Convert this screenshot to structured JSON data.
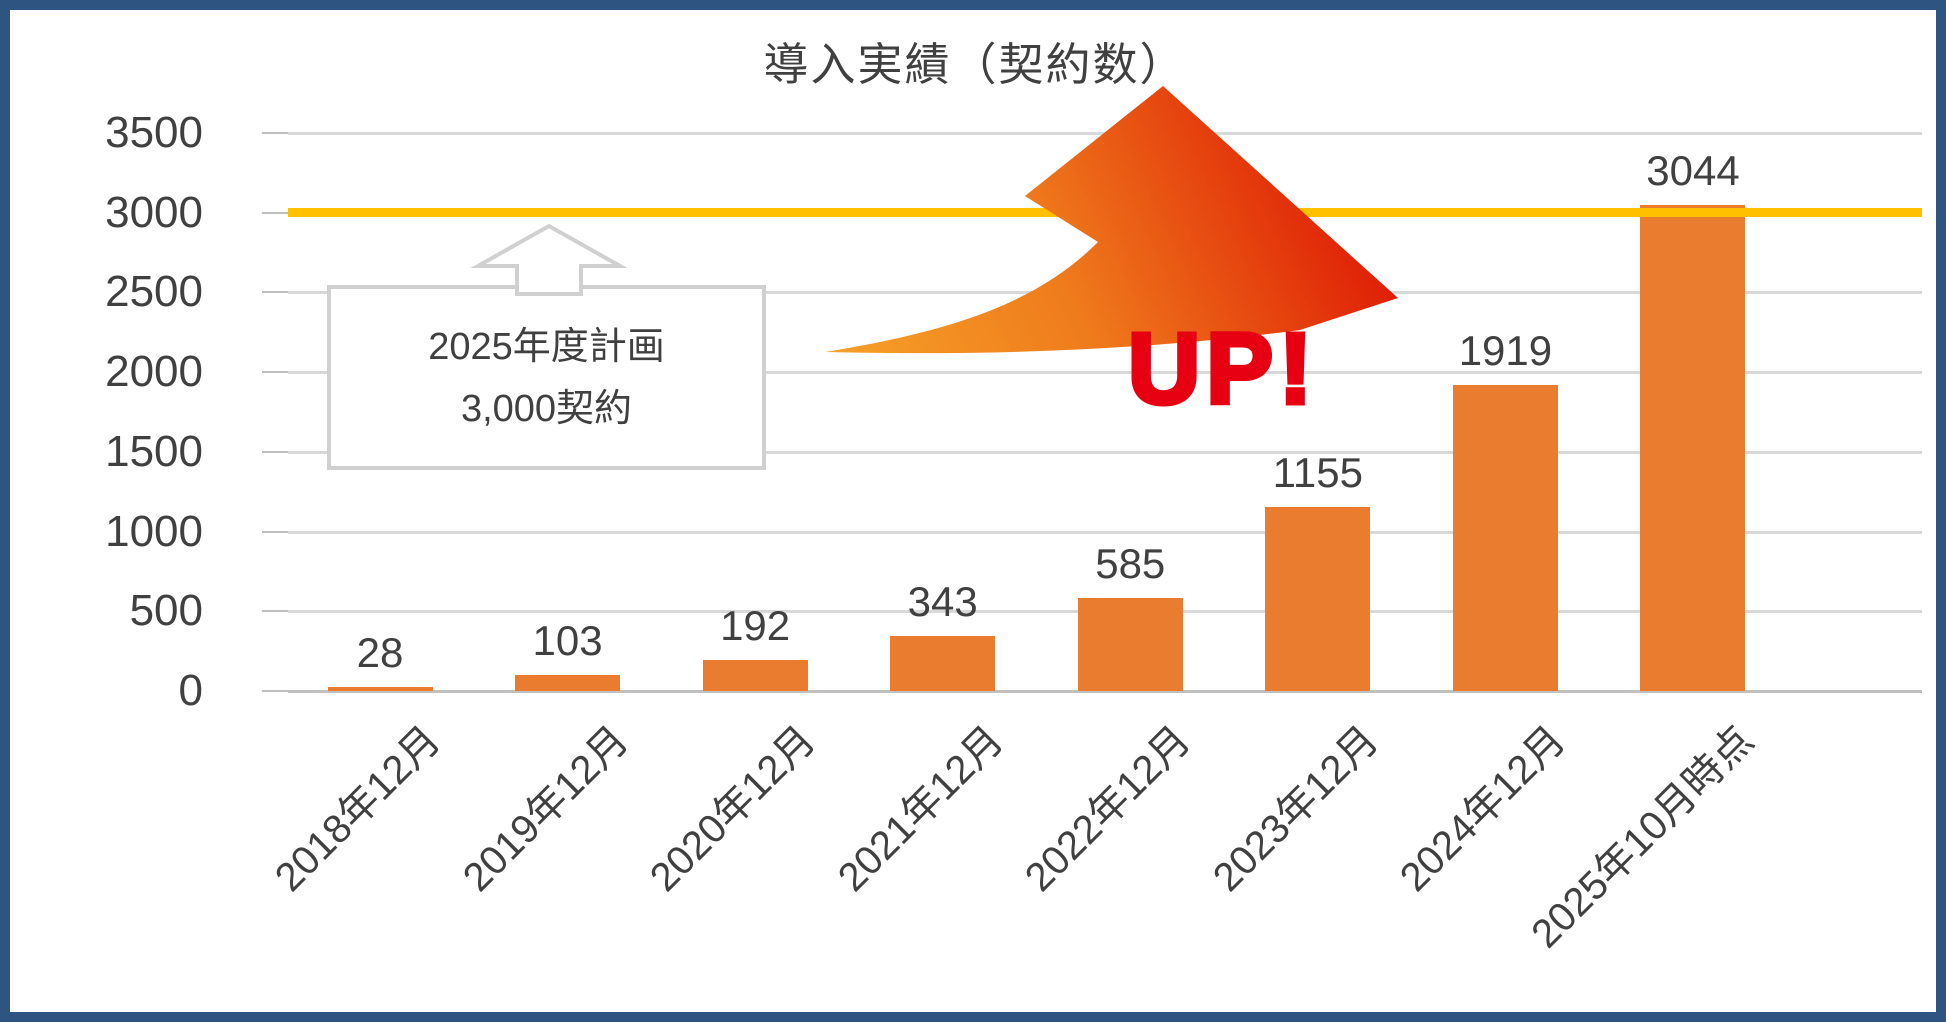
{
  "title": "導入実績（契約数）",
  "up_label": "UP!",
  "callout": {
    "line1": "2025年度計画",
    "line2": "3,000契約"
  },
  "colors": {
    "bar": "#E97C2E",
    "target_line": "#FFC000",
    "frame_border": "#2E5581",
    "up_text": "#E60012",
    "gridline": "#D9D9D9",
    "axis_text": "#404040",
    "arrow_gradient": [
      "#F6A229",
      "#EF7B1C",
      "#DE1A05"
    ]
  },
  "chart_data": {
    "type": "bar",
    "title": "導入実績（契約数）",
    "categories": [
      "2018年12月",
      "2019年12月",
      "2020年12月",
      "2021年12月",
      "2022年12月",
      "2023年12月",
      "2024年12月",
      "2025年10月時点"
    ],
    "values": [
      28,
      103,
      192,
      343,
      585,
      1155,
      1919,
      3044
    ],
    "xlabel": "",
    "ylabel": "",
    "ylim": [
      0,
      3500
    ],
    "yticks": [
      0,
      500,
      1000,
      1500,
      2000,
      2500,
      3000,
      3500
    ],
    "grid": true,
    "legend": false,
    "bar_labels_shown": true,
    "target_line": {
      "value": 3000,
      "callout_line1": "2025年度計画",
      "callout_line2": "3,000契約"
    },
    "annotation": "UP!"
  }
}
